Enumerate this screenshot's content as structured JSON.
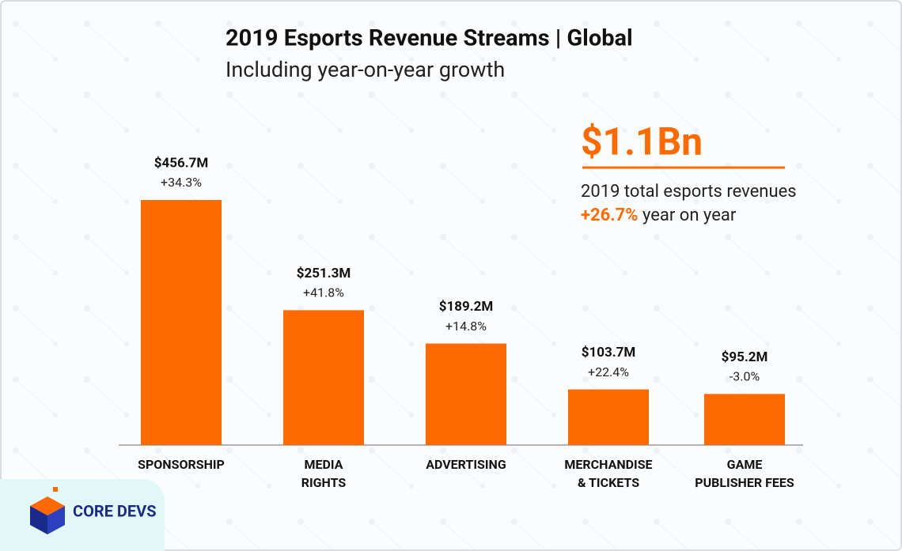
{
  "chart_data": {
    "type": "bar",
    "title": "2019 Esports Revenue Streams | Global",
    "subtitle": "Including year-on-year growth",
    "categories": [
      [
        "SPONSORSHIP"
      ],
      [
        "MEDIA",
        "RIGHTS"
      ],
      [
        "ADVERTISING"
      ],
      [
        "MERCHANDISE",
        "& TICKETS"
      ],
      [
        "GAME",
        "PUBLISHER FEES"
      ]
    ],
    "values": [
      456.7,
      251.3,
      189.2,
      103.7,
      95.2
    ],
    "value_labels": [
      "$456.7M",
      "$251.3M",
      "$189.2M",
      "$103.7M",
      "$95.2M"
    ],
    "growth_labels": [
      "+34.3%",
      "+41.8%",
      "+14.8%",
      "+22.4%",
      "-3.0%"
    ],
    "color": "#ff6a00",
    "callout": {
      "headline": "$1.1Bn",
      "line1": "2019 total esports revenues",
      "highlight": "+26.7%",
      "line2": " year on year"
    },
    "logo": "CORE DEVS"
  }
}
